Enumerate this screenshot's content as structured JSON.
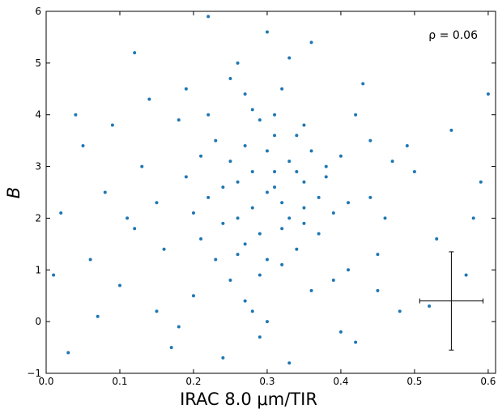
{
  "chart_data": {
    "type": "scatter",
    "xlabel": "IRAC 8.0 μm/TIR",
    "ylabel": "B",
    "annotation": "ρ = 0.06",
    "color": "#1f77b4",
    "xlim": [
      0,
      0.61
    ],
    "ylim": [
      -1,
      6
    ],
    "xticks": [
      {
        "value": 0,
        "label": "0.0"
      },
      0.1,
      0.2,
      0.3,
      0.4,
      0.5,
      0.6
    ],
    "yticks": [
      {
        "value": -1,
        "label": "−1"
      },
      0,
      1,
      2,
      3,
      4,
      5,
      6
    ],
    "error_bar": {
      "x": 0.55,
      "y": 0.4,
      "xerr": 0.043,
      "yerr": 0.95
    },
    "x": [
      0.3,
      0.28,
      0.32,
      0.25,
      0.35,
      0.27,
      0.31,
      0.22,
      0.38,
      0.29,
      0.33,
      0.26,
      0.24,
      0.36,
      0.3,
      0.19,
      0.41,
      0.28,
      0.34,
      0.23,
      0.31,
      0.27,
      0.37,
      0.21,
      0.32,
      0.15,
      0.44,
      0.29,
      0.35,
      0.18,
      0.26,
      0.39,
      0.12,
      0.47,
      0.3,
      0.2,
      0.42,
      0.08,
      0.33,
      0.25,
      0.05,
      0.5,
      0.14,
      0.45,
      0.1,
      0.36,
      0.22,
      0.4,
      0.02,
      0.55,
      0.17,
      0.48,
      0.06,
      0.58,
      0.12,
      0.43,
      0.03,
      0.6,
      0.09,
      0.53,
      0.28,
      0.31,
      0.34,
      0.29,
      0.26,
      0.33,
      0.24,
      0.37,
      0.3,
      0.32,
      0.27,
      0.35,
      0.23,
      0.38,
      0.21,
      0.39,
      0.28,
      0.31,
      0.25,
      0.36,
      0.16,
      0.44,
      0.19,
      0.41,
      0.13,
      0.46,
      0.07,
      0.52,
      0.11,
      0.49,
      0.04,
      0.57,
      0.01,
      0.59,
      0.18,
      0.42,
      0.24,
      0.33,
      0.27,
      0.2,
      0.34,
      0.3,
      0.22,
      0.4,
      0.15,
      0.45,
      0.29,
      0.32,
      0.26,
      0.35
    ],
    "y": [
      2.5,
      2.9,
      1.8,
      3.1,
      2.2,
      1.5,
      3.6,
      2.4,
      2.8,
      0.9,
      2.0,
      2.7,
      1.9,
      3.3,
      1.2,
      2.8,
      2.3,
      4.1,
      1.4,
      3.5,
      2.9,
      0.4,
      1.7,
      1.6,
      4.5,
      2.3,
      2.4,
      -0.3,
      3.8,
      3.9,
      5.0,
      0.8,
      1.8,
      3.1,
      5.6,
      0.5,
      4.0,
      2.5,
      -0.8,
      4.7,
      3.4,
      2.9,
      4.3,
      1.3,
      0.7,
      5.4,
      5.9,
      -0.2,
      2.1,
      3.7,
      -0.5,
      0.2,
      1.2,
      2.0,
      5.2,
      4.6,
      -0.6,
      4.4,
      3.8,
      1.6,
      2.2,
      2.6,
      2.9,
      1.7,
      2.0,
      3.1,
      2.6,
      2.4,
      3.3,
      1.1,
      3.4,
      1.9,
      1.2,
      3.0,
      3.2,
      2.1,
      0.2,
      4.0,
      0.8,
      0.6,
      1.4,
      3.5,
      4.5,
      1.0,
      3.0,
      2.0,
      0.1,
      0.3,
      2.0,
      3.4,
      4.0,
      0.9,
      0.9,
      2.7,
      -0.1,
      -0.4,
      -0.7,
      5.1,
      4.4,
      2.1,
      3.6,
      0.0,
      4.0,
      3.2,
      0.2,
      0.6,
      3.9,
      2.3,
      1.3,
      2.7
    ]
  }
}
